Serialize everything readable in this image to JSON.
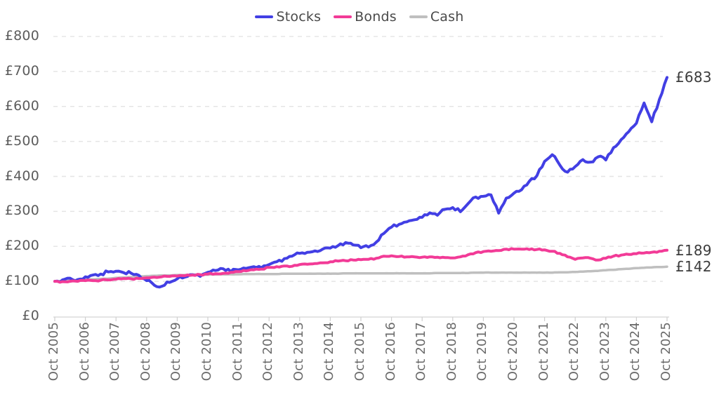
{
  "chart_data": {
    "type": "line",
    "title": "",
    "xlabel": "",
    "ylabel": "",
    "x_tick_labels": [
      "Oct 2005",
      "Oct 2006",
      "Oct 2007",
      "Oct 2008",
      "Oct 2009",
      "Oct 2010",
      "Oct 2011",
      "Oct 2012",
      "Oct 2013",
      "Oct 2014",
      "Oct 2015",
      "Oct 2016",
      "Oct 2017",
      "Oct 2018",
      "Oct 2019",
      "Oct 2020",
      "Oct 2021",
      "Oct 2022",
      "Oct 2023",
      "Oct 2024",
      "Oct 2025"
    ],
    "y_tick_values": [
      0,
      100,
      200,
      300,
      400,
      500,
      600,
      700,
      800
    ],
    "y_tick_labels": [
      "£0",
      "£100",
      "£200",
      "£300",
      "£400",
      "£500",
      "£600",
      "£700",
      "£800"
    ],
    "ylim": [
      0,
      800
    ],
    "grid": "horizontal-dashed",
    "legend_position": "top-center",
    "x_unit": "quarterly points from Oct 2005 to Oct 2025",
    "draw_order": [
      "Cash",
      "Stocks",
      "Bonds"
    ],
    "series": [
      {
        "name": "Stocks",
        "color": "#423FE4",
        "end_label": "£683",
        "end_value": 683,
        "texture_amplitude": 5,
        "stroke_width": 4,
        "values": [
          100,
          104,
          109,
          105,
          113,
          118,
          121,
          127,
          129,
          125,
          123,
          117,
          102,
          89,
          86,
          97,
          107,
          112,
          119,
          114,
          126,
          131,
          136,
          128,
          133,
          137,
          142,
          139,
          148,
          156,
          165,
          172,
          180,
          183,
          187,
          192,
          195,
          202,
          211,
          204,
          196,
          198,
          212,
          237,
          255,
          263,
          270,
          276,
          283,
          296,
          289,
          306,
          311,
          299,
          322,
          341,
          343,
          347,
          295,
          338,
          352,
          362,
          386,
          402,
          443,
          462,
          432,
          412,
          428,
          448,
          441,
          456,
          447,
          482,
          505,
          528,
          552,
          610,
          556,
          620,
          683
        ]
      },
      {
        "name": "Bonds",
        "color": "#F23B97",
        "end_label": "£189",
        "end_value": 189,
        "texture_amplitude": 2,
        "stroke_width": 4,
        "values": [
          100,
          99,
          100,
          100,
          102,
          102,
          103,
          104,
          106,
          108,
          107,
          108,
          110,
          112,
          113,
          114,
          115,
          116,
          118,
          119,
          121,
          122,
          123,
          126,
          128,
          130,
          133,
          135,
          140,
          142,
          144,
          143,
          148,
          149,
          151,
          153,
          156,
          158,
          159,
          161,
          162,
          163,
          166,
          172,
          173,
          171,
          170,
          170,
          169,
          170,
          169,
          168,
          167,
          170,
          176,
          182,
          185,
          186,
          188,
          192,
          192,
          192,
          191,
          191,
          190,
          186,
          180,
          170,
          163,
          167,
          166,
          161,
          166,
          172,
          175,
          177,
          179,
          181,
          183,
          186,
          189
        ]
      },
      {
        "name": "Cash",
        "color": "#BFBFBF",
        "end_label": "£142",
        "end_value": 142,
        "texture_amplitude": 0.3,
        "stroke_width": 3.5,
        "values": [
          100,
          101,
          102,
          103,
          105,
          106,
          107,
          108,
          110,
          111,
          112,
          114,
          115,
          116,
          117,
          117,
          118,
          118,
          119,
          119,
          119,
          120,
          120,
          120,
          120,
          121,
          121,
          121,
          121,
          121,
          122,
          122,
          122,
          122,
          122,
          122,
          122,
          122,
          123,
          123,
          123,
          123,
          123,
          123,
          123,
          123,
          123,
          123,
          123,
          123,
          124,
          124,
          124,
          124,
          124,
          125,
          125,
          125,
          125,
          125,
          125,
          125,
          125,
          125,
          125,
          125,
          126,
          126,
          127,
          128,
          129,
          130,
          132,
          133,
          135,
          136,
          138,
          139,
          140,
          141,
          142
        ]
      }
    ],
    "colors": {
      "gridline": "#E5E5E5",
      "axis_line": "#DCDCDC",
      "tick_mark": "#CFCFCF",
      "legend_text": "#4a4a4a",
      "y_label_text": "#5c5c5c",
      "x_label_text": "#6b6b6b",
      "end_label_text": "#3c3c3c"
    }
  }
}
